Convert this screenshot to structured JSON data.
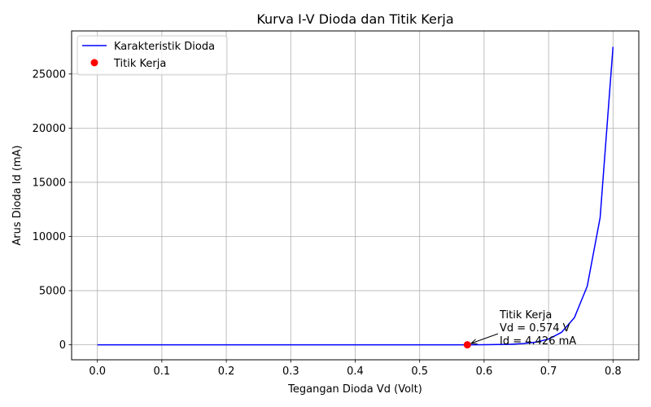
{
  "chart_data": {
    "type": "line",
    "title": "Kurva I-V Dioda dan Titik Kerja",
    "xlabel": "Tegangan Dioda Vd (Volt)",
    "ylabel": "Arus Dioda Id (mA)",
    "xlim": [
      -0.04,
      0.84
    ],
    "ylim": [
      -1380,
      28970
    ],
    "x_ticks": [
      0.0,
      0.1,
      0.2,
      0.3,
      0.4,
      0.5,
      0.6,
      0.7,
      0.8
    ],
    "x_tick_labels": [
      "0.0",
      "0.1",
      "0.2",
      "0.3",
      "0.4",
      "0.5",
      "0.6",
      "0.7",
      "0.8"
    ],
    "y_ticks": [
      0,
      5000,
      10000,
      15000,
      20000,
      25000
    ],
    "y_tick_labels": [
      "0",
      "5000",
      "10000",
      "15000",
      "20000",
      "25000"
    ],
    "grid": true,
    "legend_position": "top-left",
    "series": [
      {
        "name": "Karakteristik Dioda",
        "color": "#0000ff",
        "x": [
          0.0,
          0.05,
          0.1,
          0.15,
          0.2,
          0.25,
          0.3,
          0.35,
          0.4,
          0.45,
          0.5,
          0.55,
          0.574,
          0.6,
          0.62,
          0.64,
          0.66,
          0.68,
          0.7,
          0.72,
          0.74,
          0.76,
          0.78,
          0.8
        ],
        "y": [
          0.0,
          0.0,
          0.0,
          0.0,
          0.0,
          0.0,
          0.0,
          0.01,
          0.04,
          0.2,
          0.6,
          2.0,
          4.426,
          11,
          24,
          52,
          113,
          245,
          531,
          1150,
          2495,
          5410,
          11740,
          27500
        ]
      }
    ],
    "points": [
      {
        "name": "Titik Kerja",
        "color": "#ff0000",
        "x": 0.574,
        "y": 4.426
      }
    ],
    "annotation": {
      "lines": [
        "Titik Kerja",
        "Vd = 0.574 V",
        "Id = 4.426 mA"
      ]
    }
  }
}
